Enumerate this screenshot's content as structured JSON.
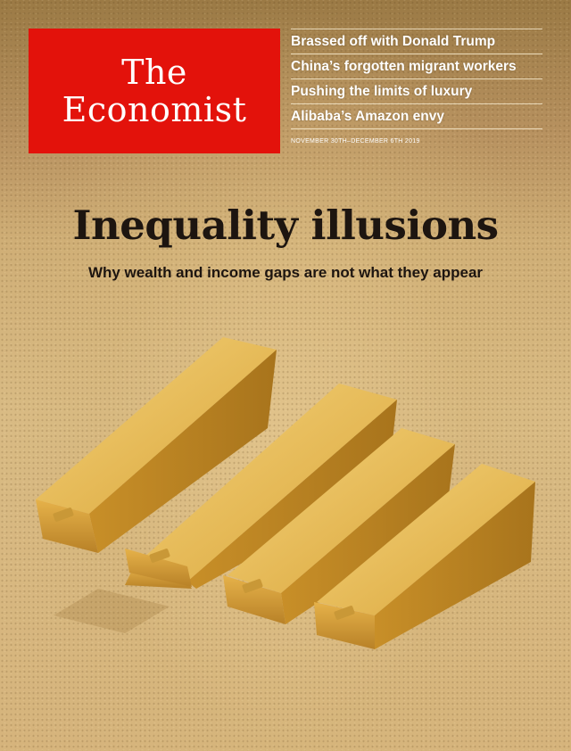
{
  "masthead": {
    "line1": "The",
    "line2": "Economist"
  },
  "teasers": [
    "Brassed off with Donald Trump",
    "China’s forgotten migrant workers",
    "Pushing the limits of luxury",
    "Alibaba’s Amazon envy"
  ],
  "dateline": "NOVEMBER 30TH–DECEMBER 6TH 2019",
  "headline": "Inequality illusions",
  "subhead": "Why wealth and income gaps are not what they appear",
  "colors": {
    "masthead_red": "#e3120b",
    "gold": "#d9a53a",
    "text_dark": "#1d1510"
  }
}
